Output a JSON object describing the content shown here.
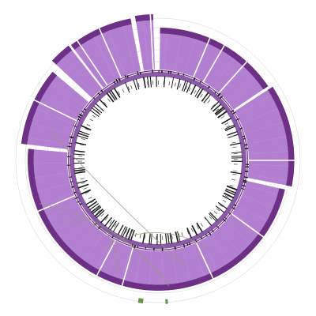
{
  "colors": {
    "background": "#ffffff",
    "fill": "#b27fd1",
    "fill_light": "#c9a3e0",
    "rim": "#6e2f86",
    "rim_dark": "#5c2470",
    "inner_fill": "#8a5aa6",
    "inner_rim": "#6a3585",
    "tick": "#1a1a1a",
    "grid": "#d0d0d0",
    "link": "#9a9a7a",
    "accent_green": "#5a8a3a"
  },
  "segments": [
    {
      "start": 351,
      "end": 358,
      "level": 1.0
    },
    {
      "start": 1,
      "end": 56,
      "level": 0.62
    },
    {
      "start": 57,
      "end": 101,
      "level": 0.72
    },
    {
      "start": 103,
      "end": 275,
      "level": 0.55
    },
    {
      "start": 277,
      "end": 310,
      "level": 0.76
    },
    {
      "start": 313,
      "end": 322,
      "level": 0.98
    },
    {
      "start": 323,
      "end": 349,
      "level": 0.95
    }
  ],
  "gaps": [
    23,
    30,
    42,
    57,
    90,
    102,
    126,
    155,
    196,
    208,
    247,
    296,
    313,
    326,
    336,
    357
  ],
  "ring_features": {
    "count": 180,
    "seed": 7
  }
}
